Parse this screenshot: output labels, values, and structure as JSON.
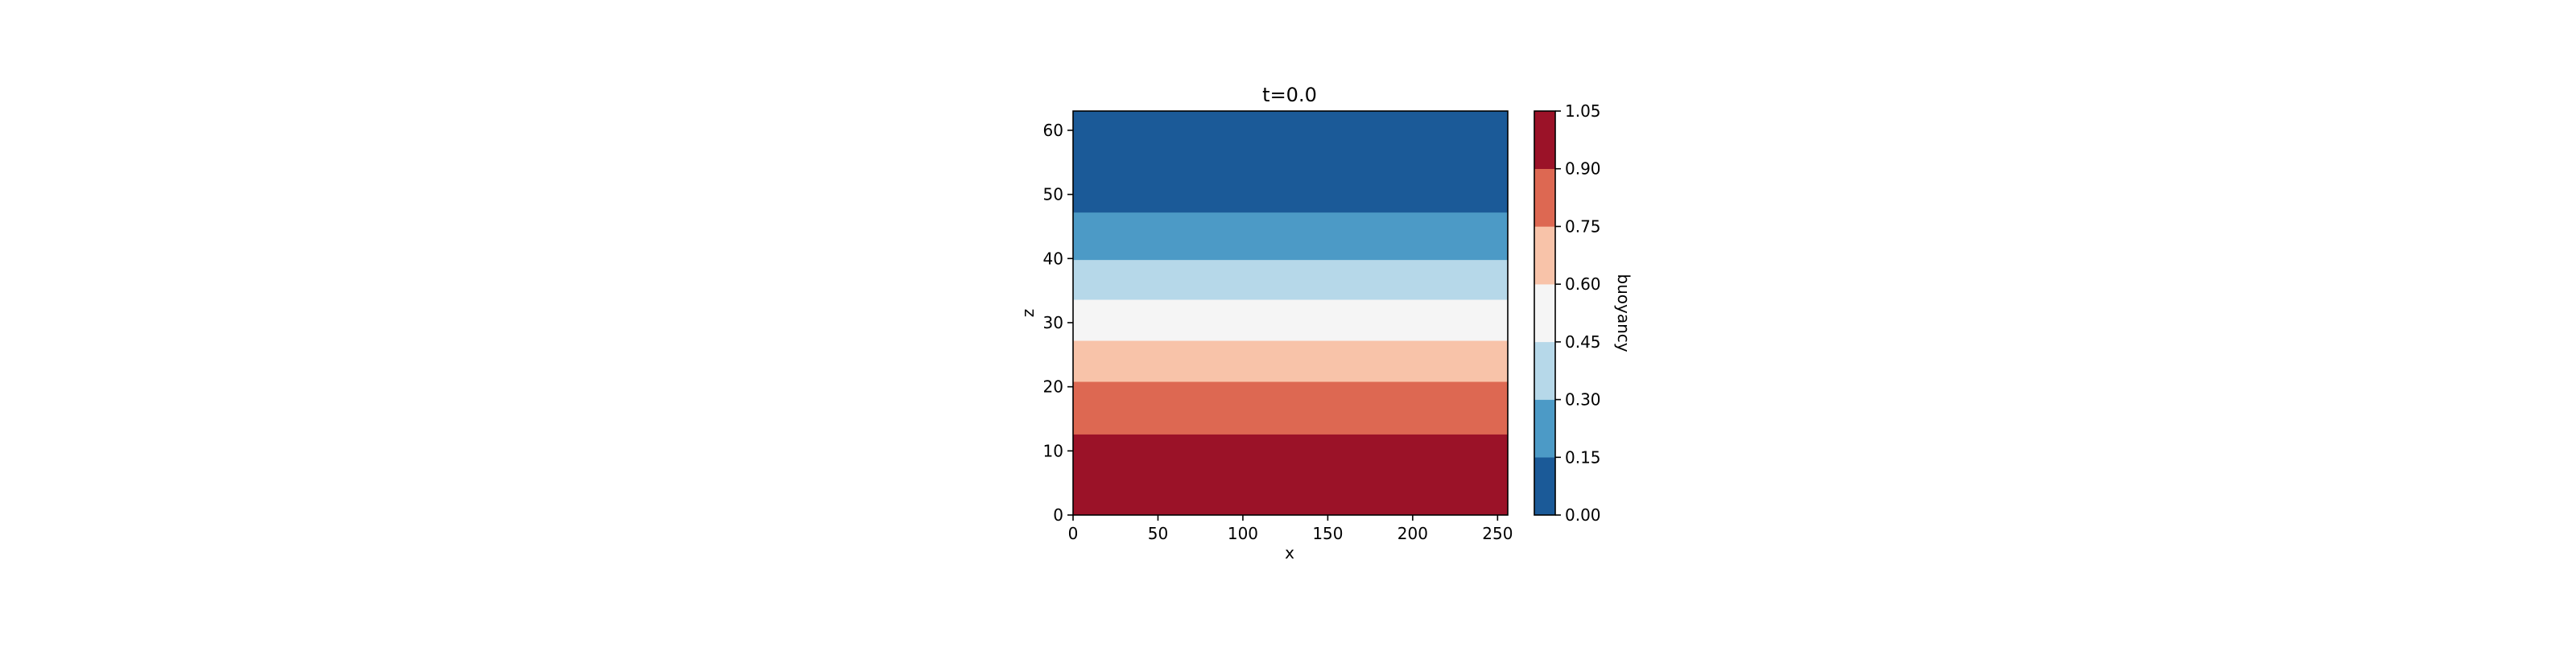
{
  "chart_data": {
    "type": "heatmap",
    "title": "t=0.0",
    "xlabel": "x",
    "ylabel": "z",
    "xlim": [
      0,
      256
    ],
    "ylim": [
      0,
      63
    ],
    "xticks": [
      0,
      50,
      100,
      150,
      200,
      250
    ],
    "yticks": [
      0,
      10,
      20,
      30,
      40,
      50,
      60
    ],
    "grid": false,
    "bands": [
      {
        "z_min": 0.0,
        "z_max": 12.6,
        "level_min": 0.9,
        "level_max": 1.05,
        "color": "#9b1228"
      },
      {
        "z_min": 12.6,
        "z_max": 20.8,
        "level_min": 0.75,
        "level_max": 0.9,
        "color": "#dd6852"
      },
      {
        "z_min": 20.8,
        "z_max": 27.2,
        "level_min": 0.6,
        "level_max": 0.75,
        "color": "#f8c3a9"
      },
      {
        "z_min": 27.2,
        "z_max": 33.6,
        "level_min": 0.45,
        "level_max": 0.6,
        "color": "#f5f5f5"
      },
      {
        "z_min": 33.6,
        "z_max": 39.8,
        "level_min": 0.3,
        "level_max": 0.45,
        "color": "#b6d8e9"
      },
      {
        "z_min": 39.8,
        "z_max": 47.2,
        "level_min": 0.15,
        "level_max": 0.3,
        "color": "#4c9ac6"
      },
      {
        "z_min": 47.2,
        "z_max": 63.0,
        "level_min": 0.0,
        "level_max": 0.15,
        "color": "#1b5a98"
      }
    ],
    "colorbar": {
      "label": "buoyancy",
      "ticks": [
        "0.00",
        "0.15",
        "0.30",
        "0.45",
        "0.60",
        "0.75",
        "0.90",
        "1.05"
      ],
      "range": [
        0.0,
        1.05
      ],
      "colors": [
        "#1b5a98",
        "#4c9ac6",
        "#b6d8e9",
        "#f5f5f5",
        "#f8c3a9",
        "#dd6852",
        "#9b1228"
      ]
    }
  }
}
